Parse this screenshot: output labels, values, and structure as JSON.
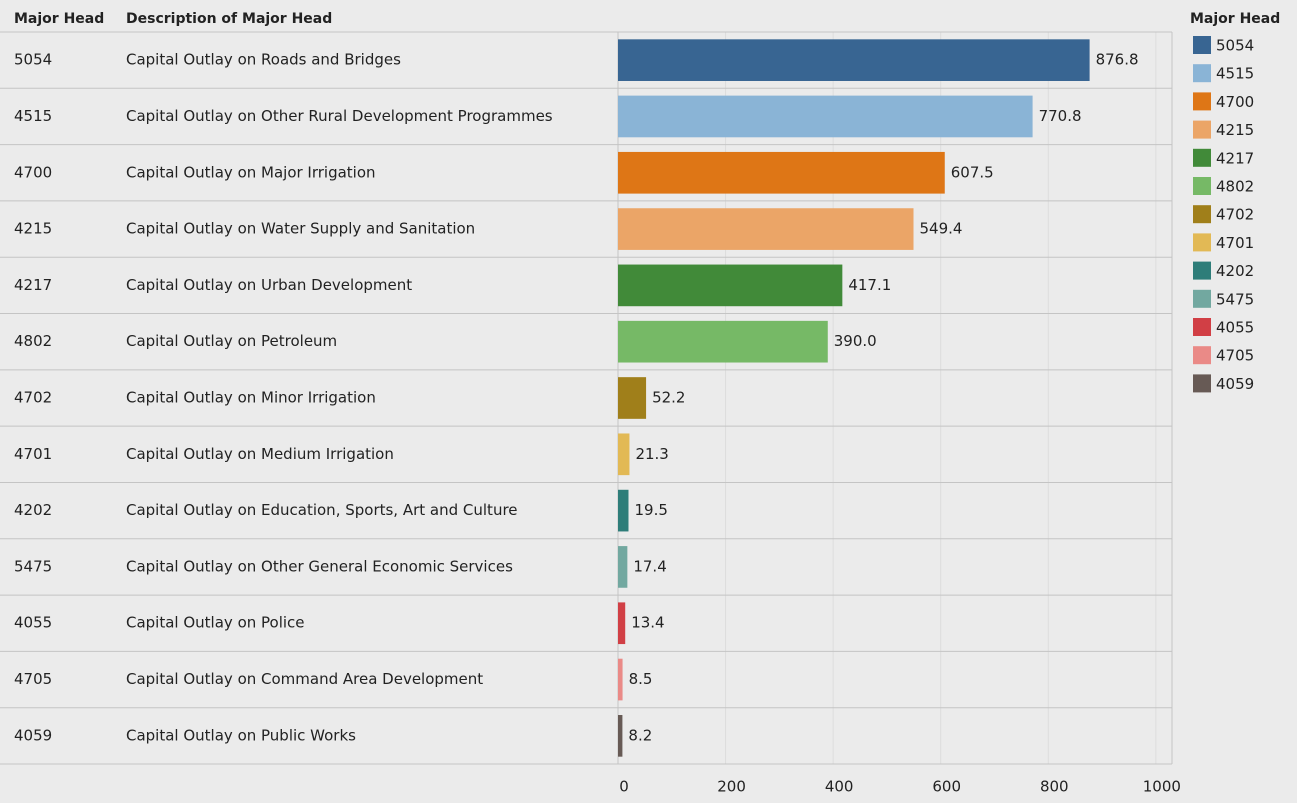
{
  "chart_data": {
    "type": "bar",
    "column_headers": [
      "Major Head",
      "Description  of Major Head"
    ],
    "legend_title": "Major Head",
    "categories": [
      "5054",
      "4515",
      "4700",
      "4215",
      "4217",
      "4802",
      "4702",
      "4701",
      "4202",
      "5475",
      "4055",
      "4705",
      "4059"
    ],
    "descriptions": [
      "Capital Outlay on Roads and Bridges",
      "Capital Outlay on Other Rural Development Programmes",
      "Capital Outlay on Major Irrigation",
      "Capital Outlay on Water Supply and Sanitation",
      "Capital Outlay on Urban Development",
      "Capital Outlay on Petroleum",
      "Capital Outlay on Minor Irrigation",
      "Capital Outlay on Medium Irrigation",
      "Capital Outlay on Education, Sports, Art and Culture",
      "Capital Outlay on Other General Economic Services",
      "Capital Outlay on Police",
      "Capital Outlay on Command Area Development",
      "Capital Outlay on Public Works"
    ],
    "values": [
      876.8,
      770.8,
      607.5,
      549.4,
      417.1,
      390,
      52.2,
      21.3,
      19.5,
      17.4,
      13.4,
      8.5,
      8.2
    ],
    "value_labels": [
      "876.8",
      "770.8",
      "607.5",
      "549.4",
      "417.1",
      "390.0",
      "52.2",
      "21.3",
      "19.5",
      "17.4",
      "13.4",
      "8.5",
      "8.2"
    ],
    "colors": [
      "#386592",
      "#8ab4d6",
      "#de7616",
      "#eba567",
      "#418a39",
      "#76b966",
      "#a07f1a",
      "#e2b955",
      "#2e7d79",
      "#72a8a0",
      "#d13f45",
      "#ea8a87",
      "#675a55"
    ],
    "xlim": [
      0,
      1030
    ],
    "xticks": [
      0,
      200,
      400,
      600,
      800,
      1000
    ],
    "grid": true,
    "legend": "right"
  }
}
